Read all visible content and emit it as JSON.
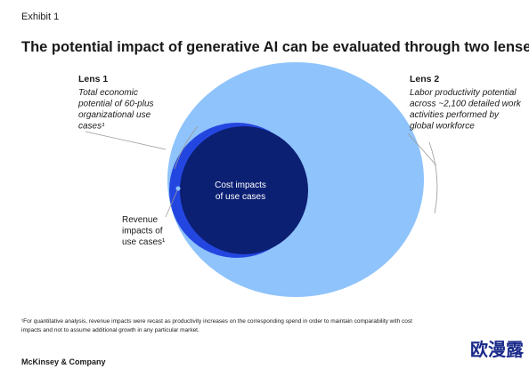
{
  "header": {
    "exhibit": "Exhibit 1",
    "title": "The potential impact of generative AI can be evaluated through two lenses."
  },
  "lens1": {
    "label": "Lens 1",
    "lines": [
      "Total economic",
      "potential of 60-plus",
      "organizational use",
      "cases¹"
    ]
  },
  "lens2": {
    "label": "Lens 2",
    "lines": [
      "Labor productivity potential",
      "across ~2,100 detailed work",
      "activities performed by",
      "global workforce"
    ]
  },
  "inner": {
    "lines": [
      "Cost impacts",
      "of use cases"
    ]
  },
  "revenue": {
    "lines": [
      "Revenue",
      "impacts of",
      "use cases¹"
    ]
  },
  "footnote": {
    "lines": [
      "¹For quantitative analysis, revenue impacts were recast as productivity increases on the corresponding spend in order to maintain comparability with cost",
      "impacts and not to assume additional growth in any particular market."
    ]
  },
  "source": "McKinsey & Company",
  "watermark": "欧漫露"
}
